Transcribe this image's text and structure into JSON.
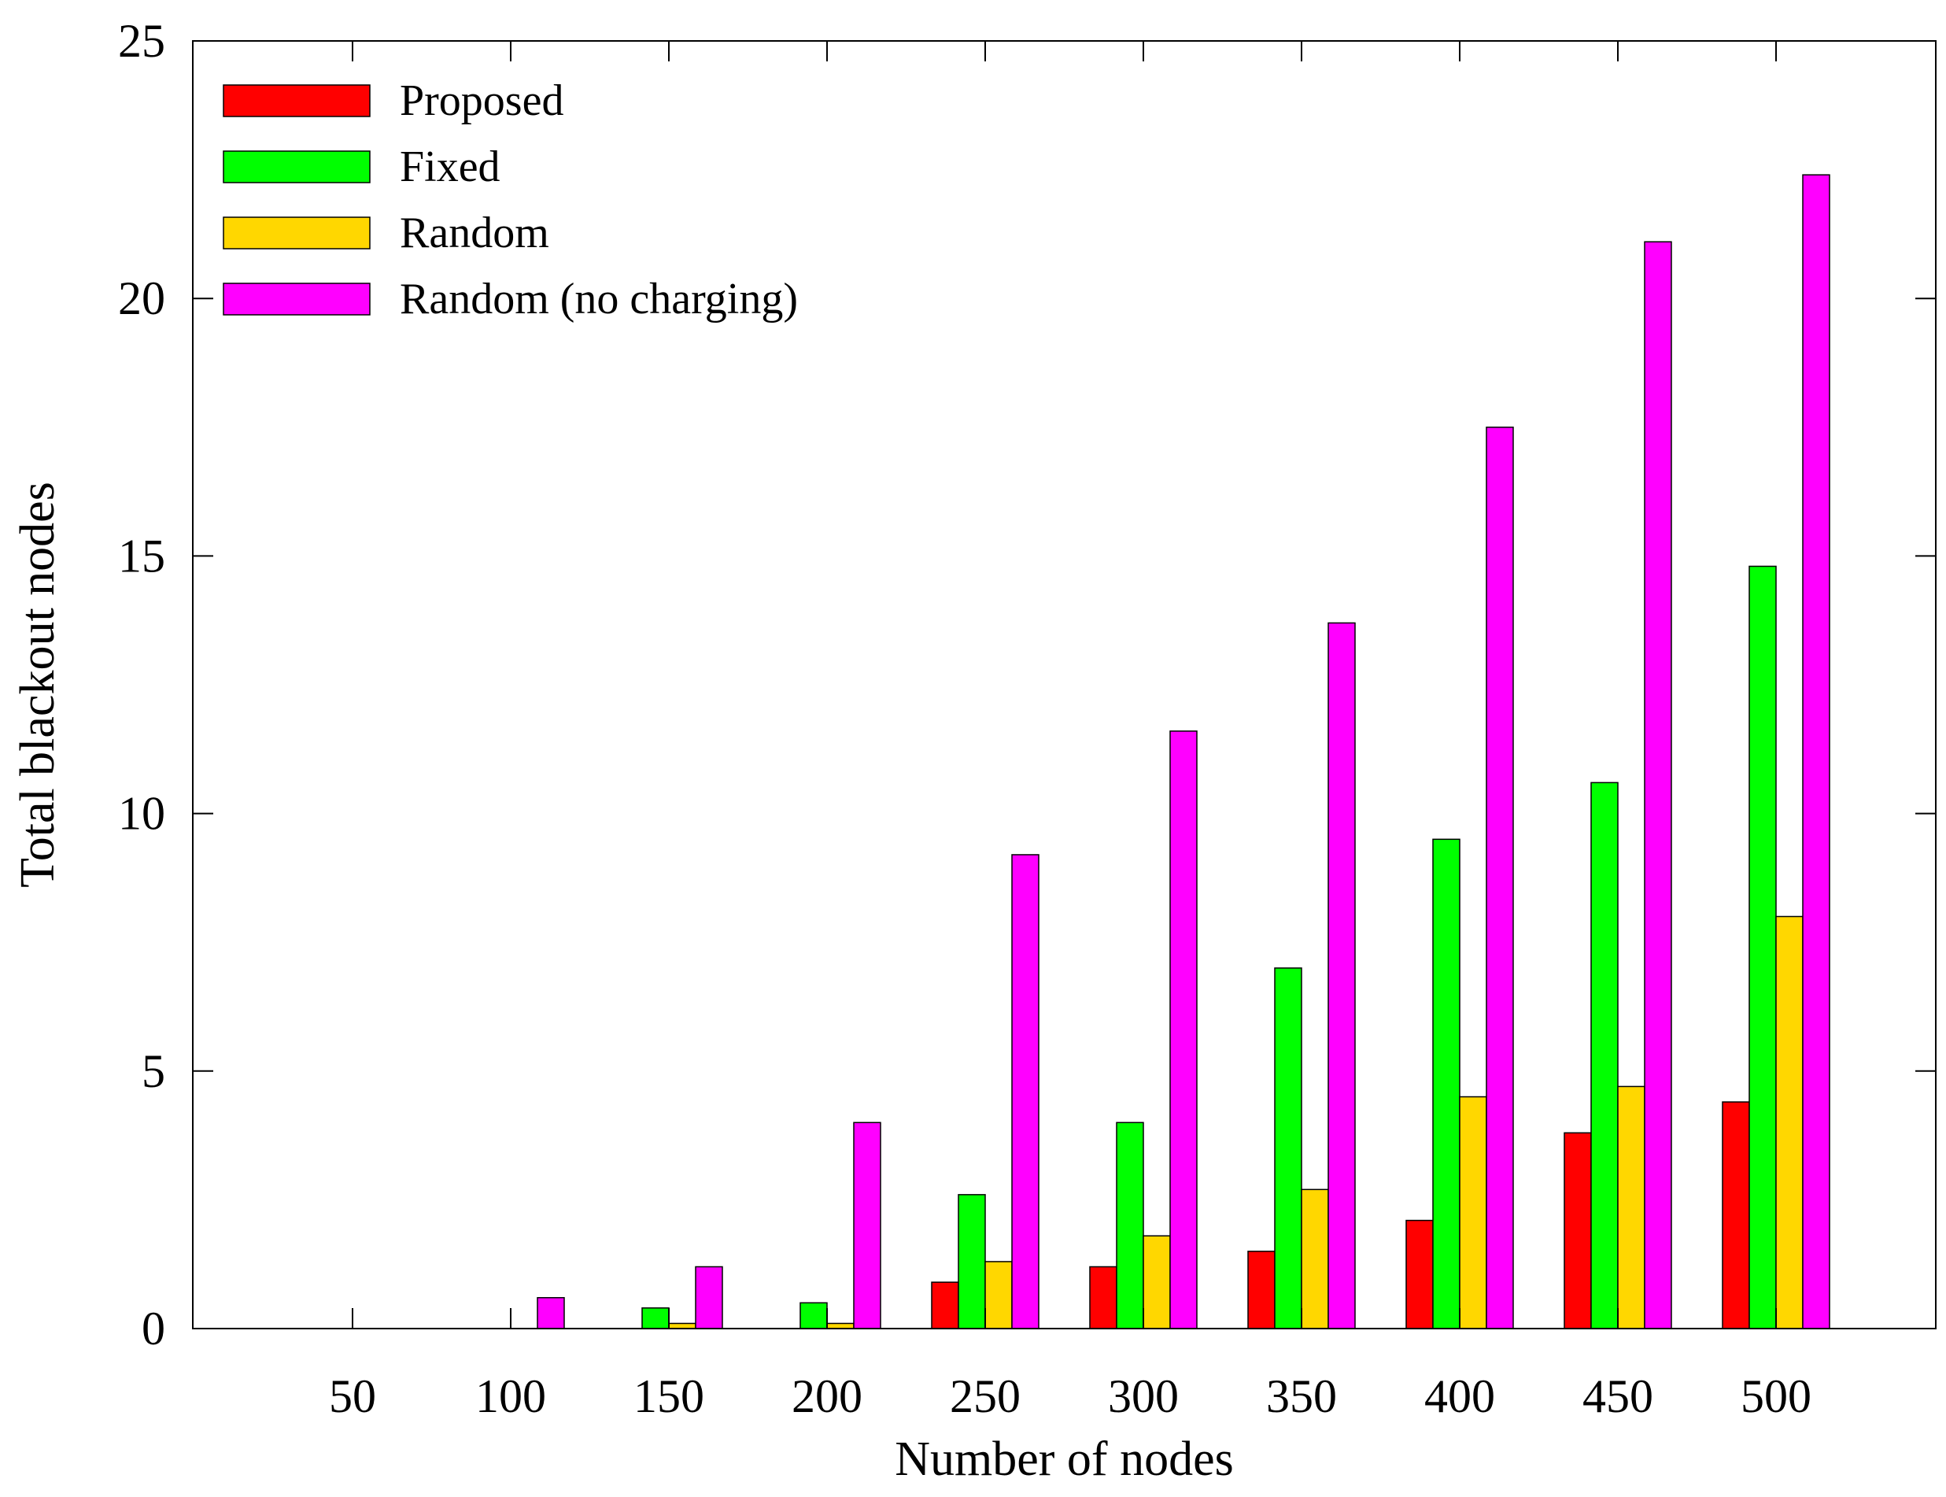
{
  "chart_data": {
    "type": "bar",
    "title": "",
    "xlabel": "Number of nodes",
    "ylabel": "Total blackout nodes",
    "ylim": [
      0,
      25
    ],
    "yticks": [
      "0",
      "5",
      "10",
      "15",
      "20",
      "25"
    ],
    "grid": false,
    "legend_position": "top-left",
    "categories": [
      "50",
      "100",
      "150",
      "200",
      "250",
      "300",
      "350",
      "400",
      "450",
      "500"
    ],
    "series": [
      {
        "name": "Proposed",
        "color": "#ff0000",
        "values": [
          0,
          0,
          0,
          0,
          0.9,
          1.2,
          1.5,
          2.1,
          3.8,
          4.4
        ]
      },
      {
        "name": "Fixed",
        "color": "#00ff00",
        "values": [
          0,
          0,
          0.4,
          0.5,
          2.6,
          4.0,
          7.0,
          9.5,
          10.6,
          14.8
        ]
      },
      {
        "name": "Random",
        "color": "#ffd700",
        "values": [
          0,
          0,
          0.1,
          0.1,
          1.3,
          1.8,
          2.7,
          4.5,
          4.7,
          8.0
        ]
      },
      {
        "name": "Random (no charging)",
        "color": "#ff00ff",
        "values": [
          0,
          0.6,
          1.2,
          4.0,
          9.2,
          11.6,
          13.7,
          17.5,
          21.1,
          22.4
        ]
      }
    ]
  }
}
